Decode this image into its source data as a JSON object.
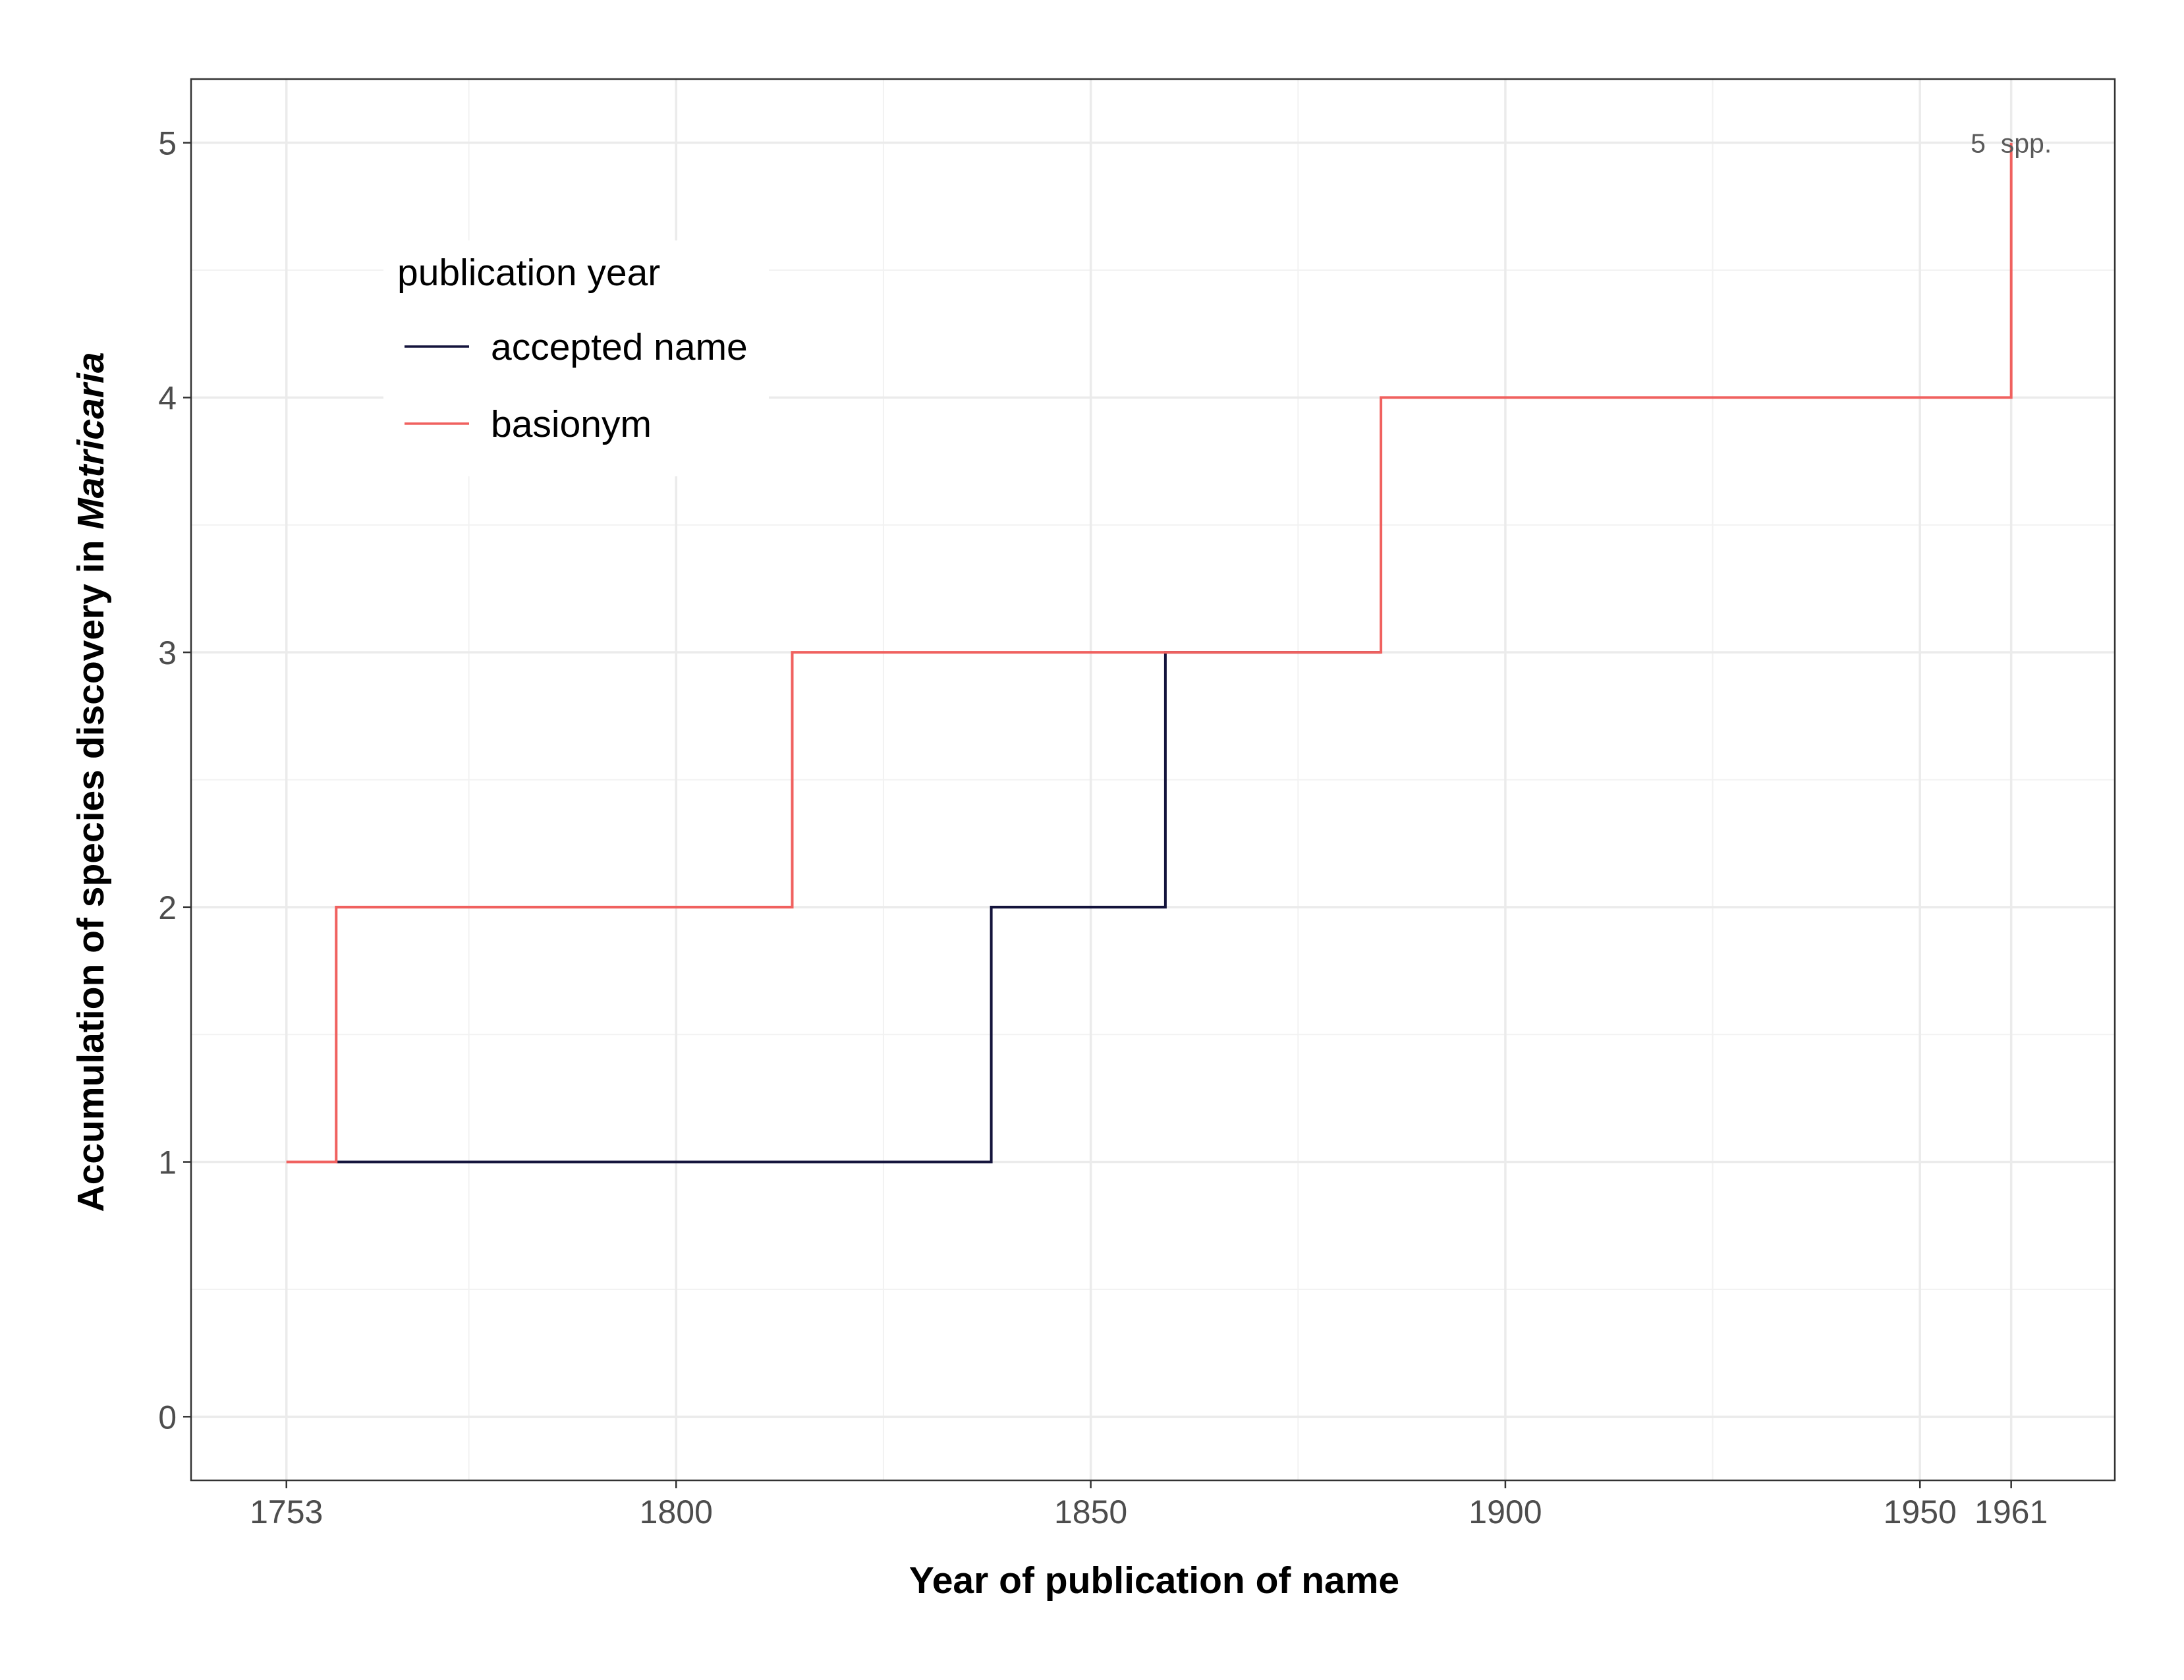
{
  "chart_data": {
    "type": "line",
    "step": true,
    "title": "",
    "xlabel": "Year of publication of name",
    "ylabel_prefix": "Accumulation of species discovery in ",
    "ylabel_italic": "Matricaria",
    "xlim": [
      1741.5,
      1973.5
    ],
    "ylim": [
      -0.25,
      5.25
    ],
    "x_ticks": [
      1753,
      1800,
      1850,
      1900,
      1950,
      1961
    ],
    "y_ticks": [
      0,
      1,
      2,
      3,
      4,
      5
    ],
    "grid": true,
    "legend": {
      "title": "publication year",
      "placement": "top-left inside",
      "entries": [
        "accepted name",
        "basionym"
      ]
    },
    "series": [
      {
        "name": "accepted name",
        "color": "#14143c",
        "points": [
          [
            1759,
            1
          ],
          [
            1838,
            1
          ],
          [
            1838,
            2
          ],
          [
            1859,
            2
          ],
          [
            1859,
            3
          ],
          [
            1885,
            3
          ]
        ]
      },
      {
        "name": "basionym",
        "color": "#f0615f",
        "points": [
          [
            1753,
            1
          ],
          [
            1759,
            1
          ],
          [
            1759,
            2
          ],
          [
            1814,
            2
          ],
          [
            1814,
            3
          ],
          [
            1885,
            3
          ],
          [
            1885,
            4
          ],
          [
            1961,
            4
          ],
          [
            1961,
            5
          ]
        ]
      }
    ],
    "annotations": [
      {
        "text": "5  spp.",
        "x": 1961,
        "y": 5
      }
    ]
  }
}
